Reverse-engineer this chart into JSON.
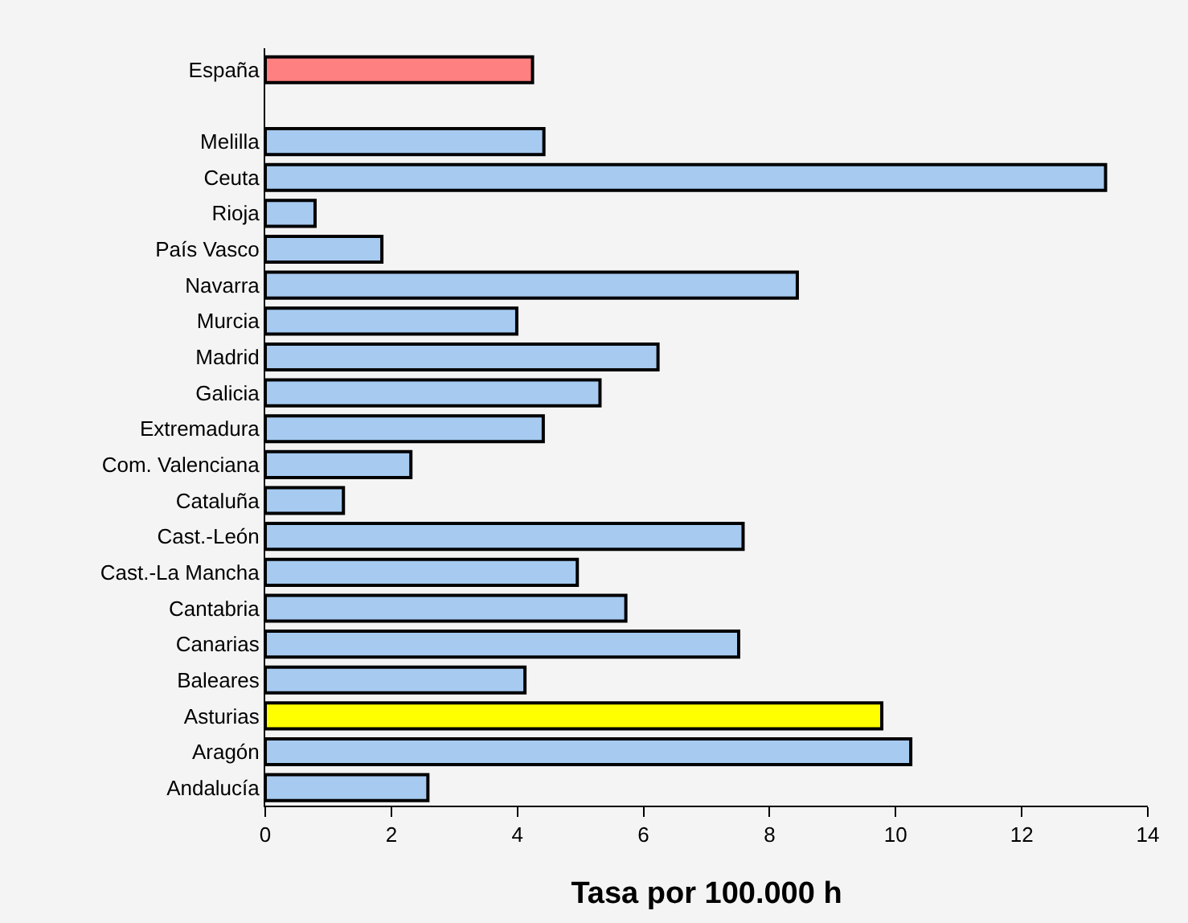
{
  "chart_data": {
    "type": "bar",
    "orientation": "horizontal",
    "xlabel": "Tasa por 100.000 h",
    "categories": [
      "España",
      null,
      "Melilla",
      "Ceuta",
      "Rioja",
      "País Vasco",
      "Navarra",
      "Murcia",
      "Madrid",
      "Galicia",
      "Extremadura",
      "Com. Valenciana",
      "Cataluña",
      "Cast.-León",
      "Cast.-La Mancha",
      "Cantabria",
      "Canarias",
      "Baleares",
      "Asturias",
      "Aragón",
      "Andalucía"
    ],
    "values": [
      4.24,
      null,
      4.42,
      13.33,
      0.79,
      1.85,
      8.44,
      3.99,
      6.23,
      5.31,
      4.41,
      2.31,
      1.24,
      7.58,
      4.95,
      5.72,
      7.51,
      4.12,
      9.78,
      10.24,
      2.58
    ],
    "colors": [
      "#ff8080",
      "#a6caf0",
      "#a6caf0",
      "#a6caf0",
      "#a6caf0",
      "#a6caf0",
      "#a6caf0",
      "#a6caf0",
      "#a6caf0",
      "#a6caf0",
      "#a6caf0",
      "#a6caf0",
      "#a6caf0",
      "#a6caf0",
      "#a6caf0",
      "#a6caf0",
      "#a6caf0",
      "#a6caf0",
      "#ffff00",
      "#a6caf0",
      "#a6caf0"
    ],
    "xlim": [
      0,
      14
    ],
    "xticks": [
      0,
      2,
      4,
      6,
      8,
      10,
      12,
      14
    ]
  }
}
